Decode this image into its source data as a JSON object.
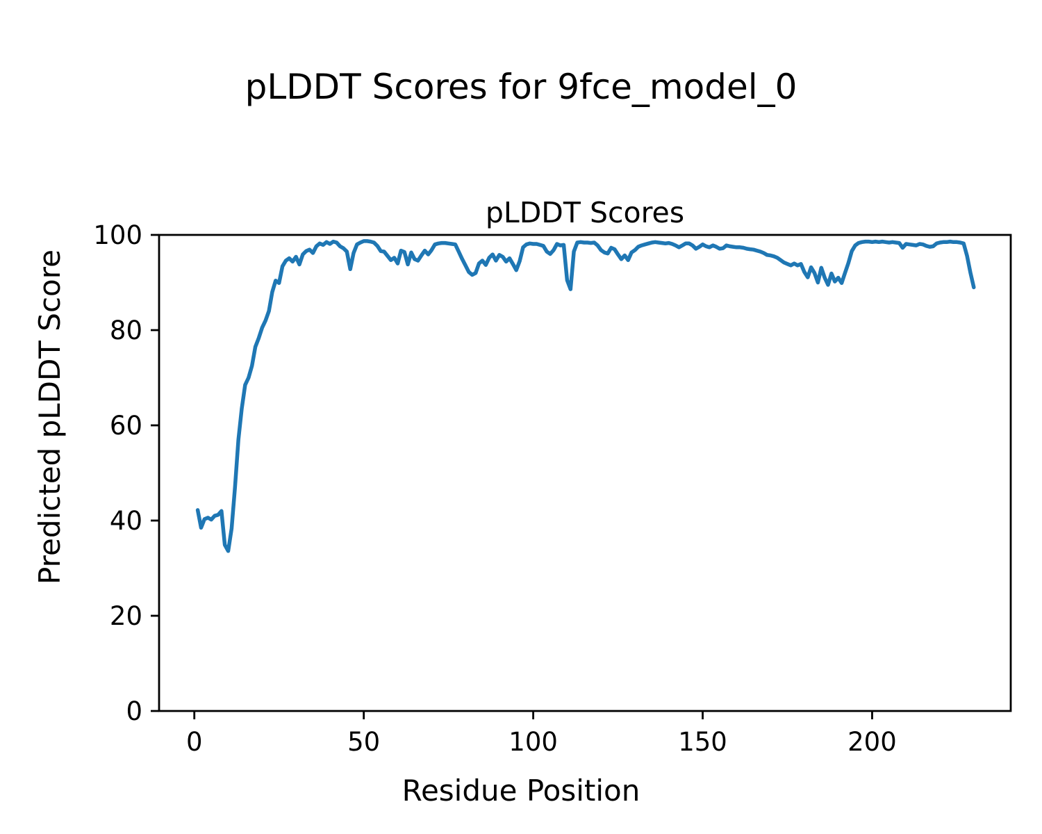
{
  "figure": {
    "background": "#ffffff",
    "suptitle": "pLDDT Scores for 9fce_model_0"
  },
  "chart_data": {
    "type": "line",
    "title": "pLDDT Scores",
    "xlabel": "Residue Position",
    "ylabel": "Predicted pLDDT Score",
    "line_color": "#1f77b4",
    "text_color": "#000000",
    "grid": false,
    "legend": null,
    "xlim": [
      -10.4,
      240.9
    ],
    "ylim": [
      0,
      100
    ],
    "x_ticks": [
      0,
      50,
      100,
      150,
      200
    ],
    "y_ticks": [
      0,
      20,
      40,
      60,
      80,
      100
    ],
    "series": [
      {
        "name": "pLDDT",
        "x_start": 1,
        "x_step": 1,
        "values": [
          42.2,
          38.5,
          40.3,
          40.6,
          40.2,
          41.0,
          41.2,
          42.0,
          34.9,
          33.6,
          38.3,
          47.0,
          57.0,
          63.5,
          68.5,
          70.0,
          72.5,
          76.5,
          78.3,
          80.5,
          82.0,
          84.0,
          88.0,
          90.4,
          89.9,
          93.4,
          94.6,
          95.1,
          94.4,
          95.4,
          93.8,
          95.9,
          96.6,
          96.9,
          96.2,
          97.6,
          98.2,
          97.9,
          98.5,
          98.1,
          98.6,
          98.4,
          97.6,
          97.2,
          96.5,
          92.8,
          96.2,
          98.0,
          98.4,
          98.7,
          98.7,
          98.6,
          98.4,
          97.7,
          96.6,
          96.5,
          95.6,
          94.7,
          95.2,
          94.0,
          96.7,
          96.4,
          93.8,
          96.3,
          94.9,
          94.6,
          95.7,
          96.7,
          95.9,
          96.8,
          98.0,
          98.2,
          98.3,
          98.3,
          98.2,
          98.1,
          98.0,
          96.5,
          95.0,
          93.6,
          92.2,
          91.6,
          92.0,
          94.0,
          94.6,
          93.7,
          95.2,
          95.9,
          94.6,
          95.8,
          95.4,
          94.4,
          95.1,
          93.9,
          92.6,
          94.5,
          97.4,
          98.0,
          98.2,
          98.1,
          98.1,
          97.9,
          97.7,
          96.5,
          96.0,
          96.8,
          98.1,
          97.8,
          97.9,
          90.5,
          88.6,
          96.5,
          98.4,
          98.5,
          98.4,
          98.4,
          98.3,
          98.4,
          97.8,
          96.8,
          96.3,
          96.1,
          97.3,
          97.0,
          95.9,
          94.9,
          95.7,
          94.7,
          96.3,
          96.8,
          97.5,
          97.8,
          98.0,
          98.2,
          98.4,
          98.5,
          98.4,
          98.3,
          98.2,
          98.3,
          98.1,
          97.8,
          97.4,
          97.8,
          98.2,
          98.2,
          97.8,
          97.1,
          97.5,
          98.0,
          97.6,
          97.4,
          97.8,
          97.5,
          97.1,
          97.2,
          97.8,
          97.6,
          97.5,
          97.4,
          97.4,
          97.3,
          97.1,
          97.0,
          96.9,
          96.7,
          96.5,
          96.2,
          95.8,
          95.7,
          95.5,
          95.2,
          94.7,
          94.2,
          93.9,
          93.6,
          94.0,
          93.6,
          93.9,
          92.2,
          91.1,
          93.2,
          92.0,
          90.0,
          93.1,
          91.0,
          89.5,
          91.9,
          90.2,
          91.0,
          89.9,
          92.0,
          94.1,
          96.6,
          97.8,
          98.3,
          98.5,
          98.6,
          98.6,
          98.5,
          98.6,
          98.5,
          98.6,
          98.5,
          98.4,
          98.5,
          98.4,
          98.3,
          97.3,
          98.1,
          98.0,
          97.9,
          97.8,
          98.1,
          98.0,
          97.7,
          97.5,
          97.6,
          98.2,
          98.4,
          98.5,
          98.5,
          98.6,
          98.5,
          98.5,
          98.4,
          98.2,
          95.6,
          92.1,
          89.0
        ]
      }
    ]
  }
}
